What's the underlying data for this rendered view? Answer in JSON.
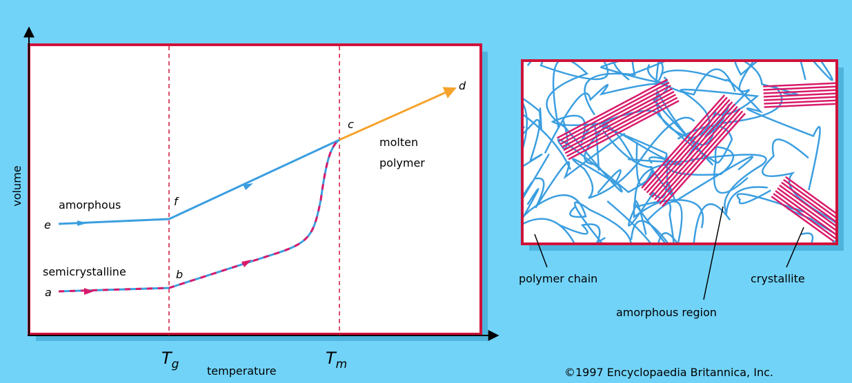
{
  "graph": {
    "y_label": "volume",
    "x_label": "temperature",
    "glass_transition": {
      "symbol": "T",
      "subscript": "g"
    },
    "melting_point": {
      "symbol": "T",
      "subscript": "m"
    },
    "points": [
      "a",
      "b",
      "c",
      "d",
      "e",
      "f"
    ],
    "curves": {
      "amorphous": "amorphous",
      "semicrystalline": "semicrystalline",
      "molten": [
        "molten",
        "polymer"
      ]
    }
  },
  "structure": {
    "labels": [
      "polymer chain",
      "amorphous region",
      "crystallite"
    ]
  },
  "credit": "©1997 Encyclopaedia Britannica, Inc."
}
